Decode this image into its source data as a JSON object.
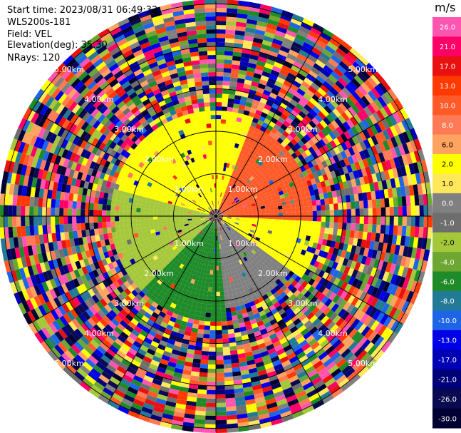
{
  "header": {
    "start_time": "Start time: 2023/08/31 06:49:32",
    "instrument": "WLS200s-181",
    "field": "Field: VEL",
    "elevation": "Elevation(deg): 35.30",
    "nrays": "NRays: 120"
  },
  "chart_data": {
    "type": "heatmap",
    "projection": "polar-ppi",
    "rays": 120,
    "range_rings_km": [
      1,
      2,
      3,
      4,
      5
    ],
    "ring_labels": [
      "1.00km",
      "2.00km",
      "3.00km",
      "4.00km",
      "5.00km"
    ],
    "radial_lines_deg": [
      0,
      30,
      60,
      90,
      120,
      150,
      180,
      210,
      240,
      270,
      300,
      330
    ],
    "field": "VEL",
    "unit": "m/s",
    "velocity_regions": [
      {
        "sector": "north-east",
        "value_mps": 10.0,
        "range_km": [
          0.5,
          2.3
        ]
      },
      {
        "sector": "north-west",
        "value_mps": 2.0,
        "range_km": [
          0.5,
          2.5
        ]
      },
      {
        "sector": "west",
        "value_mps": -2.0,
        "range_km": [
          0.4,
          2.5
        ]
      },
      {
        "sector": "south-west",
        "value_mps": -6.0,
        "range_km": [
          0.4,
          2.5
        ]
      },
      {
        "sector": "east",
        "value_mps": 2.0,
        "range_km": [
          0.5,
          2.6
        ]
      },
      {
        "sector": "south-east",
        "value_mps": 0.0,
        "range_km": [
          0.3,
          2.2
        ]
      }
    ],
    "colorbar": {
      "label": "m/s",
      "bins": [
        {
          "label": "26.0",
          "color": "#ff55b0"
        },
        {
          "label": "21.0",
          "color": "#ff0066"
        },
        {
          "label": "17.0",
          "color": "#e81010"
        },
        {
          "label": "13.0",
          "color": "#ff3a00"
        },
        {
          "label": "10.0",
          "color": "#ff5a28"
        },
        {
          "label": "8.0",
          "color": "#ff7a55"
        },
        {
          "label": "6.0",
          "color": "#ffa35f"
        },
        {
          "label": "2.0",
          "color": "#ffff00"
        },
        {
          "label": "1.0",
          "color": "#ffe85a"
        },
        {
          "label": "0.0",
          "color": "#808080"
        },
        {
          "label": "-1.0",
          "color": "#6e6e6e"
        },
        {
          "label": "-2.0",
          "color": "#a5c83a"
        },
        {
          "label": "-4.0",
          "color": "#6ea632"
        },
        {
          "label": "-6.0",
          "color": "#1e8a28"
        },
        {
          "label": "-8.0",
          "color": "#237a96"
        },
        {
          "label": "-10.0",
          "color": "#1e64e6"
        },
        {
          "label": "-13.0",
          "color": "#0000e6"
        },
        {
          "label": "-17.0",
          "color": "#0000b4"
        },
        {
          "label": "-21.0",
          "color": "#000078"
        },
        {
          "label": "-26.0",
          "color": "#0a0a50"
        },
        {
          "label": "-30.0",
          "color": "#000032"
        }
      ]
    }
  }
}
